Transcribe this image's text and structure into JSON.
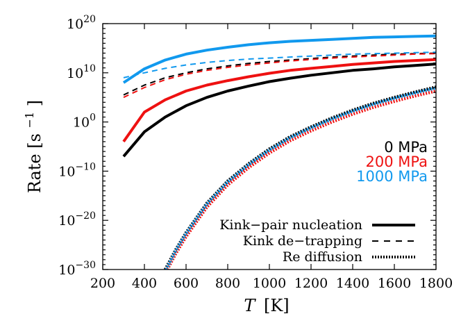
{
  "chart_data": {
    "type": "line",
    "title": "",
    "xlabel_var": "T",
    "xlabel_unit": "[K]",
    "ylabel": "Rate [s",
    "ylabel_sup": "−1",
    "ylabel_close": "]",
    "xlim": [
      200,
      1800
    ],
    "ylim_exp": [
      -30,
      20
    ],
    "yscale": "log",
    "x_ticks": [
      "200",
      "400",
      "600",
      "800",
      "1000",
      "1200",
      "1400",
      "1600",
      "1800"
    ],
    "x_tick_values": [
      200,
      400,
      600,
      800,
      1000,
      1200,
      1400,
      1600,
      1800
    ],
    "y_tick_exponents": [
      "20",
      "10",
      "0",
      "−10",
      "−20",
      "−30"
    ],
    "y_tick_values": [
      20,
      10,
      0,
      -10,
      -20,
      -30
    ],
    "grid": false,
    "stress_labels": [
      {
        "text": "0 MPa",
        "color": "#000000"
      },
      {
        "text": "200 MPa",
        "color": "#ee1111"
      },
      {
        "text": "1000 MPa",
        "color": "#1199ee"
      }
    ],
    "legend_position": "bottom-right",
    "legend": [
      {
        "label": "Kink−pair nucleation",
        "style": "solid"
      },
      {
        "label": "Kink de−trapping",
        "style": "dashed"
      },
      {
        "label": "Re diffusion",
        "style": "dotted"
      }
    ],
    "series": [
      {
        "mechanism": "nucleation",
        "stress": "0 MPa",
        "color": "#000000",
        "x": [
          300,
          400,
          500,
          600,
          700,
          800,
          900,
          1000,
          1100,
          1200,
          1300,
          1400,
          1500,
          1600,
          1700,
          1800
        ],
        "log10_y": [
          -7.0,
          -2.0,
          1.0,
          3.3,
          5.0,
          6.3,
          7.3,
          8.2,
          8.9,
          9.5,
          10.0,
          10.5,
          10.8,
          11.2,
          11.5,
          11.8
        ]
      },
      {
        "mechanism": "nucleation",
        "stress": "200 MPa",
        "color": "#ee1111",
        "x": [
          300,
          400,
          500,
          600,
          700,
          800,
          900,
          1000,
          1100,
          1200,
          1300,
          1400,
          1500,
          1600,
          1700,
          1800
        ],
        "log10_y": [
          -4.0,
          2.0,
          4.5,
          6.3,
          7.5,
          8.4,
          9.2,
          9.9,
          10.5,
          10.9,
          11.3,
          11.7,
          12.0,
          12.3,
          12.5,
          12.7
        ]
      },
      {
        "mechanism": "nucleation",
        "stress": "1000 MPa",
        "color": "#1199ee",
        "x": [
          300,
          400,
          500,
          600,
          700,
          800,
          900,
          1000,
          1100,
          1200,
          1300,
          1400,
          1500,
          1600,
          1700,
          1800
        ],
        "log10_y": [
          8.0,
          10.8,
          12.6,
          13.8,
          14.6,
          15.2,
          15.7,
          16.1,
          16.4,
          16.6,
          16.8,
          17.0,
          17.2,
          17.3,
          17.4,
          17.5
        ]
      },
      {
        "mechanism": "detrapping",
        "stress": "0 MPa",
        "color": "#000000",
        "x": [
          300,
          400,
          500,
          600,
          700,
          800,
          900,
          1000,
          1100,
          1200,
          1300,
          1400,
          1500,
          1600,
          1700,
          1800
        ],
        "log10_y": [
          5.5,
          7.5,
          9.0,
          10.0,
          10.8,
          11.4,
          11.9,
          12.3,
          12.6,
          12.9,
          13.2,
          13.4,
          13.6,
          13.8,
          13.9,
          14.0
        ]
      },
      {
        "mechanism": "detrapping",
        "stress": "200 MPa",
        "color": "#ee1111",
        "x": [
          300,
          400,
          500,
          600,
          700,
          800,
          900,
          1000,
          1100,
          1200,
          1300,
          1400,
          1500,
          1600,
          1700,
          1800
        ],
        "log10_y": [
          5.0,
          7.0,
          8.6,
          9.7,
          10.5,
          11.1,
          11.6,
          12.0,
          12.4,
          12.7,
          13.0,
          13.2,
          13.4,
          13.6,
          13.8,
          13.9
        ]
      },
      {
        "mechanism": "detrapping",
        "stress": "1000 MPa",
        "color": "#1199ee",
        "x": [
          300,
          400,
          500,
          600,
          700,
          800,
          900,
          1000,
          1100,
          1200,
          1300,
          1400,
          1500,
          1600,
          1700,
          1800
        ],
        "log10_y": [
          9.0,
          10.0,
          10.9,
          11.6,
          12.1,
          12.5,
          12.8,
          13.0,
          13.2,
          13.4,
          13.6,
          13.8,
          13.9,
          14.0,
          14.1,
          14.2
        ]
      },
      {
        "mechanism": "re_diffusion",
        "stress": "0 MPa",
        "color": "#000000",
        "x": [
          500,
          550,
          600,
          700,
          800,
          900,
          1000,
          1100,
          1200,
          1300,
          1400,
          1500,
          1600,
          1700,
          1800
        ],
        "log10_y": [
          -30.0,
          -26.0,
          -22.5,
          -16.5,
          -12.0,
          -8.5,
          -5.5,
          -3.0,
          -1.0,
          0.8,
          2.4,
          3.8,
          5.0,
          6.1,
          7.1
        ]
      },
      {
        "mechanism": "re_diffusion",
        "stress": "200 MPa",
        "color": "#ee1111",
        "x": [
          510,
          550,
          600,
          700,
          800,
          900,
          1000,
          1100,
          1200,
          1300,
          1400,
          1500,
          1600,
          1700,
          1800
        ],
        "log10_y": [
          -30.0,
          -26.8,
          -23.3,
          -17.3,
          -12.8,
          -9.3,
          -6.3,
          -3.8,
          -1.8,
          0.0,
          1.6,
          3.0,
          4.2,
          5.3,
          6.3
        ]
      },
      {
        "mechanism": "re_diffusion",
        "stress": "1000 MPa",
        "color": "#1199ee",
        "x": [
          505,
          550,
          600,
          700,
          800,
          900,
          1000,
          1100,
          1200,
          1300,
          1400,
          1500,
          1600,
          1700,
          1800
        ],
        "log10_y": [
          -30.0,
          -26.2,
          -22.7,
          -16.7,
          -12.2,
          -8.7,
          -5.7,
          -3.2,
          -1.2,
          0.6,
          2.2,
          3.6,
          4.8,
          5.9,
          6.9
        ]
      }
    ]
  }
}
